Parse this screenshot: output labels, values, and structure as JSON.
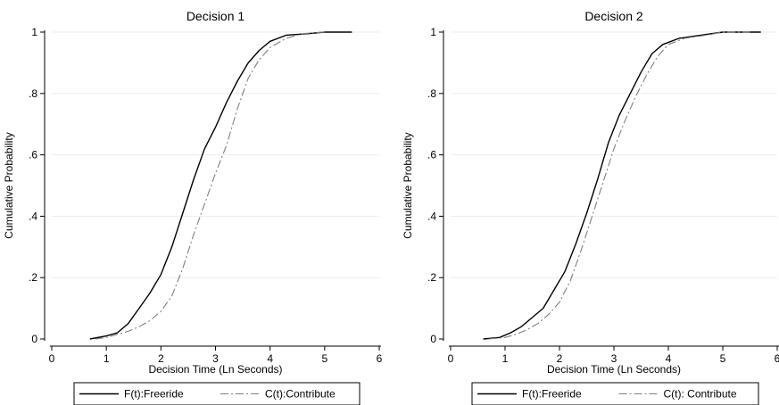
{
  "chart_data": [
    {
      "type": "line",
      "title": "Decision 1",
      "xlabel": "Decision Time (Ln Seconds)",
      "ylabel": "Cumulative Probability",
      "xlim": [
        0,
        6
      ],
      "ylim": [
        0,
        1
      ],
      "x_ticks": [
        "0",
        "1",
        "2",
        "3",
        "4",
        "5",
        "6"
      ],
      "y_ticks": [
        "0",
        ".2",
        ".4",
        ".6",
        ".8",
        "1"
      ],
      "grid": true,
      "legend_position": "bottom",
      "series": [
        {
          "name": "F(t):Freeride",
          "style": "solid",
          "color": "#000000",
          "points": [
            [
              0.7,
              0.0
            ],
            [
              1.0,
              0.01
            ],
            [
              1.2,
              0.02
            ],
            [
              1.4,
              0.05
            ],
            [
              1.6,
              0.1
            ],
            [
              1.8,
              0.15
            ],
            [
              2.0,
              0.21
            ],
            [
              2.2,
              0.3
            ],
            [
              2.4,
              0.41
            ],
            [
              2.6,
              0.52
            ],
            [
              2.8,
              0.62
            ],
            [
              3.0,
              0.69
            ],
            [
              3.2,
              0.77
            ],
            [
              3.4,
              0.84
            ],
            [
              3.6,
              0.9
            ],
            [
              3.8,
              0.94
            ],
            [
              4.0,
              0.97
            ],
            [
              4.3,
              0.99
            ],
            [
              4.7,
              0.995
            ],
            [
              5.0,
              1.0
            ],
            [
              5.5,
              1.0
            ]
          ]
        },
        {
          "name": "C(t):Contribute",
          "style": "dashdot",
          "color": "#808080",
          "points": [
            [
              0.8,
              0.0
            ],
            [
              1.0,
              0.005
            ],
            [
              1.2,
              0.015
            ],
            [
              1.4,
              0.025
            ],
            [
              1.6,
              0.04
            ],
            [
              1.8,
              0.06
            ],
            [
              2.0,
              0.09
            ],
            [
              2.2,
              0.14
            ],
            [
              2.4,
              0.23
            ],
            [
              2.6,
              0.34
            ],
            [
              2.8,
              0.44
            ],
            [
              3.0,
              0.54
            ],
            [
              3.2,
              0.63
            ],
            [
              3.4,
              0.75
            ],
            [
              3.6,
              0.85
            ],
            [
              3.8,
              0.91
            ],
            [
              4.0,
              0.95
            ],
            [
              4.3,
              0.98
            ],
            [
              4.6,
              0.995
            ],
            [
              5.0,
              1.0
            ]
          ]
        }
      ]
    },
    {
      "type": "line",
      "title": "Decision 2",
      "xlabel": "Decision Time (Ln Seconds)",
      "ylabel": "Cumulative Probability",
      "xlim": [
        0,
        6
      ],
      "ylim": [
        0,
        1
      ],
      "x_ticks": [
        "0",
        "1",
        "2",
        "3",
        "4",
        "5",
        "6"
      ],
      "y_ticks": [
        "0",
        ".2",
        ".4",
        ".6",
        ".8",
        "1"
      ],
      "grid": true,
      "legend_position": "bottom",
      "series": [
        {
          "name": "F(t):Freeride",
          "style": "solid",
          "color": "#000000",
          "points": [
            [
              0.6,
              0.0
            ],
            [
              0.9,
              0.005
            ],
            [
              1.1,
              0.02
            ],
            [
              1.3,
              0.04
            ],
            [
              1.5,
              0.07
            ],
            [
              1.7,
              0.1
            ],
            [
              1.9,
              0.16
            ],
            [
              2.1,
              0.22
            ],
            [
              2.3,
              0.31
            ],
            [
              2.5,
              0.41
            ],
            [
              2.7,
              0.52
            ],
            [
              2.9,
              0.64
            ],
            [
              3.1,
              0.73
            ],
            [
              3.3,
              0.8
            ],
            [
              3.5,
              0.87
            ],
            [
              3.7,
              0.93
            ],
            [
              3.9,
              0.96
            ],
            [
              4.2,
              0.98
            ],
            [
              4.6,
              0.99
            ],
            [
              5.0,
              1.0
            ],
            [
              5.7,
              1.0
            ]
          ]
        },
        {
          "name": "C(t): Contribute",
          "style": "dashdot",
          "color": "#808080",
          "points": [
            [
              0.7,
              0.0
            ],
            [
              1.0,
              0.005
            ],
            [
              1.2,
              0.015
            ],
            [
              1.4,
              0.03
            ],
            [
              1.6,
              0.05
            ],
            [
              1.8,
              0.08
            ],
            [
              2.0,
              0.12
            ],
            [
              2.2,
              0.19
            ],
            [
              2.4,
              0.29
            ],
            [
              2.6,
              0.4
            ],
            [
              2.8,
              0.51
            ],
            [
              3.0,
              0.62
            ],
            [
              3.2,
              0.71
            ],
            [
              3.4,
              0.79
            ],
            [
              3.6,
              0.86
            ],
            [
              3.8,
              0.92
            ],
            [
              4.0,
              0.96
            ],
            [
              4.3,
              0.98
            ],
            [
              4.7,
              0.99
            ],
            [
              5.0,
              1.0
            ],
            [
              5.5,
              1.0
            ]
          ]
        }
      ]
    }
  ]
}
